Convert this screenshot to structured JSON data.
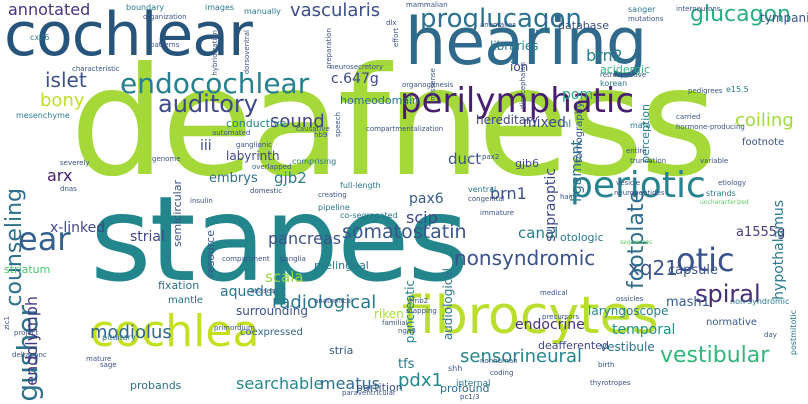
{
  "words": {
    "deafness": "deafness",
    "stapes": "stapes",
    "cochlear": "cochlear",
    "hearing": "hearing",
    "fibrocytes": "fibrocytes",
    "cochlea": "cochlea",
    "perilymphatic": "perilymphatic",
    "periotic": "periotic",
    "endocochlear": "endocochlear",
    "proglucagon": "proglucagon",
    "glucagon": "glucagon",
    "auditory": "auditory",
    "ear": "ear",
    "otic": "otic",
    "gusher": "gusher",
    "spiral": "spiral",
    "vestibular": "vestibular",
    "somatostatin": "somatostatin",
    "counseling": "counseling",
    "islet": "islet",
    "nonsyndromic": "nonsyndromic",
    "annotated": "annotated",
    "vascularis": "vascularis",
    "modiolus": "modiolus",
    "bony": "bony",
    "sound": "sound",
    "radiological": "radiological",
    "sensorineural": "sensorineural",
    "pdx1": "pdx1",
    "xq21": "xq21",
    "footplate": "footplate",
    "coiling": "coiling",
    "brn2": "brn2",
    "brn1": "brn1",
    "c647g": "c.647g",
    "searchable": "searchable",
    "meatus": "meatus",
    "endolymph": "endolymph",
    "a1555g": "a1555g",
    "pancreas": "pancreas",
    "xlinked": "x-linked",
    "scala": "scala",
    "gjb2": "gjb2",
    "scip": "scip",
    "pax6": "pax6",
    "pom": "pom",
    "mixed": "mixed",
    "arx": "arx",
    "strial": "strial",
    "mash1": "mash1",
    "endocrine": "endocrine",
    "temporal": "temporal",
    "vestibule": "vestibule",
    "canal": "canal",
    "capsule": "capsule",
    "conductive": "conductive",
    "hereditary": "hereditary",
    "labyrinth": "labyrinth",
    "homeodomain": "homeodomain",
    "embrys": "embrys",
    "duct": "duct",
    "iii": "iii",
    "prelingual": "prelingual",
    "stria": "stria",
    "aqueduct": "aqueduct",
    "tfs": "tfs",
    "riken": "riken",
    "partition": "partition",
    "profound": "profound",
    "probands": "probands",
    "striatum": "striatum",
    "surrounding": "surrounding",
    "fixation": "fixation",
    "mantle": "mantle",
    "coexpressed": "coexpressed",
    "semicircular": "semicircular",
    "resource": "resource",
    "laryngoscope": "laryngoscope",
    "deafferented": "deafferented",
    "normative": "normative",
    "hypothalamus": "hypothalamus",
    "ligament": "ligament",
    "supraoptic": "supraoptic",
    "ion": "ion",
    "acidergic": "acidergic",
    "perception": "perception",
    "tympani": "tympani",
    "libraries": "libraries",
    "database": "database",
    "tomography": "tomography",
    "footnote": "footnote",
    "hl": "hl",
    "gjb6": "gjb6",
    "otologic": "otologic",
    "pancreatic": "pancreatic",
    "audiological": "audiological",
    "shh": "shh",
    "internal": "internal"
  },
  "small_words": [
    "boundary",
    "organization",
    "images",
    "manually",
    "mammalian",
    "sanger",
    "mutations",
    "cx26",
    "patterns",
    "hybridization",
    "preparation",
    "effort",
    "anomalies",
    "dlx",
    "characteristic",
    "dorsoventral",
    "organogenesis",
    "missense",
    "korean",
    "retrospective",
    "mesenchyme",
    "automated",
    "speech",
    "causative",
    "compartmentalization",
    "carried",
    "mafa",
    "hormone-producing",
    "e15.5",
    "genome",
    "ganglionic",
    "comprising",
    "pax2",
    "entire",
    "truncation",
    "variable",
    "etiology",
    "severely",
    "overlapped",
    "hb9",
    "full-length",
    "vesicle",
    "strands",
    "dnas",
    "insulin",
    "domestic",
    "ventral",
    "congenital",
    "hair",
    "neuropeptides",
    "creating",
    "pipeline",
    "co-segregated",
    "immature",
    "compartment",
    "ganglia",
    "atlases",
    "anatomical",
    "efnb2",
    "mapping",
    "medical",
    "ossicles",
    "pituitary",
    "primordium",
    "ngn3",
    "familial",
    "precursors",
    "non-syndromic",
    "postmitotic",
    "deltapanc",
    "mature",
    "sage",
    "nonhuman",
    "birth",
    "thyrotropes",
    "coding",
    "interneurons",
    "pedigrees",
    "paraventricular",
    "zic1",
    "neurosecretory",
    "diencephalon",
    "sequences",
    "uncharacterized",
    "project",
    "pc1/3",
    "day"
  ]
}
